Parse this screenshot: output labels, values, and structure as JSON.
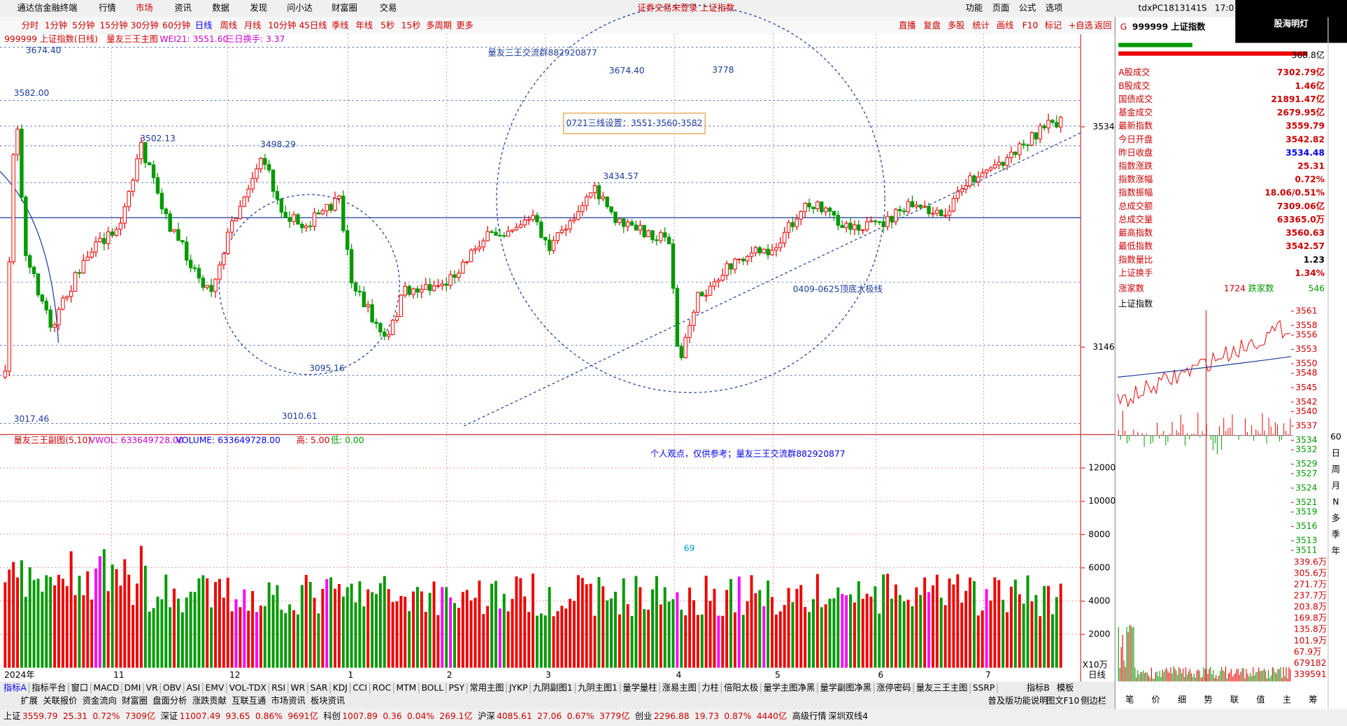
{
  "menu": {
    "app": "通达信金融终端",
    "items": [
      "行情",
      "市场",
      "资讯",
      "数据",
      "发现",
      "问小达",
      "财富圈",
      "交易"
    ],
    "notice": "证券交易未登录 上证指数",
    "right": [
      "功能",
      "页面",
      "公式",
      "选项"
    ],
    "pc": "tdxPC1813141S",
    "time": "17:0"
  },
  "periods": [
    "分时",
    "1分钟",
    "5分钟",
    "15分钟",
    "30分钟",
    "60分钟",
    "日线",
    "周线",
    "月线",
    "10分钟",
    "45日线",
    "季线",
    "年线",
    "5秒",
    "15秒",
    "多周期",
    "更多"
  ],
  "tools": [
    "直播",
    "复盘",
    "多股",
    "统计",
    "画线",
    "F10",
    "标记",
    "+自选",
    "返回"
  ],
  "chart_header": {
    "name": "999999 上证指数(日线)",
    "indicator": "量友三王主图",
    "wei": "WEI21: 3551.60",
    "turnover": "三日换手: 3.37"
  },
  "price_labels": [
    "3674.40",
    "3582.00",
    "3502.13",
    "3498.29",
    "3434.57",
    "3095.16",
    "3010.61",
    "3017.46"
  ],
  "annotations": {
    "group": "量友三王交流群882920877",
    "high": "3674.40",
    "target": "3778",
    "lines": "0721三线设置：3551-3560-3582",
    "taiji": "0409-0625顶底太极线"
  },
  "price_axis": [
    3534,
    3146
  ],
  "sub_header": [
    "量友三王副图(5,10)",
    "VWOL: 633649728.00",
    "VOLUME: 633649728.00",
    "高: 5.00",
    "低: 0.00"
  ],
  "sub_note": "个人观点，仅供参考；量友三王交流群882920877",
  "volume_axis": [
    12000,
    10000,
    8000,
    6000,
    4000,
    2000
  ],
  "volume_unit": "X10万",
  "volume_mark": "69",
  "months": [
    "2024年",
    "11",
    "12",
    "1",
    "2",
    "3",
    "4",
    "5",
    "6",
    "7"
  ],
  "period_tag": "日线",
  "indicator_tabs": [
    "指标A",
    "指标平台",
    "窗口",
    "MACD",
    "DMI",
    "VR",
    "OBV",
    "ASI",
    "EMV",
    "VOL-TDX",
    "RSI",
    "WR",
    "SAR",
    "KDJ",
    "CCI",
    "ROC",
    "MTM",
    "BOLL",
    "PSY",
    "常用主图",
    "JYKP",
    "九阴副图1",
    "九阴主图1",
    "量学量柱",
    "涨易主图",
    "力柱",
    "倍阳太极",
    "量学主图净黑",
    "量学副图净黑",
    "涨停密码",
    "量友三王主图",
    "SSRP"
  ],
  "indicator_right": [
    "指标B",
    "模板"
  ],
  "function_tabs": [
    "扩展",
    "关联报价",
    "资金流向",
    "财富圈",
    "盘面分析",
    "涨跌贡献",
    "互联互通",
    "市场资讯",
    "板块资讯"
  ],
  "function_right": [
    "普及版功能说明",
    "图文F10",
    "侧边栏"
  ],
  "status": [
    "上证",
    "3559.79",
    "25.31",
    "0.72%",
    "7309亿",
    "深证",
    "11007.49",
    "93.65",
    "0.86%",
    "9691亿",
    "科创",
    "1007.89",
    "0.36",
    "0.04%",
    "269.1亿",
    "沪深",
    "4085.61",
    "27.06",
    "0.67%",
    "3779亿",
    "创业",
    "2296.88",
    "19.73",
    "0.87%",
    "4440亿",
    "高级行情",
    "深圳双线4"
  ],
  "quote": {
    "badge": "G",
    "code": "999999 上证指数",
    "watermark": "股海明灯",
    "top_value": "368.8亿",
    "rows": [
      [
        "A股成交",
        "7302.79亿"
      ],
      [
        "B股成交",
        "1.46亿"
      ],
      [
        "国债成交",
        "21891.47亿"
      ],
      [
        "基金成交",
        "2679.95亿"
      ],
      [
        "最新指数",
        "3559.79"
      ],
      [
        "今日开盘",
        "3542.82"
      ],
      [
        "昨日收盘",
        "3534.48"
      ],
      [
        "指数涨跌",
        "25.31"
      ],
      [
        "指数涨幅",
        "0.72%"
      ],
      [
        "指数振幅",
        "18.06/0.51%"
      ],
      [
        "总成交额",
        "7309.06亿"
      ],
      [
        "总成交量",
        "63365.0万"
      ],
      [
        "最高指数",
        "3560.63"
      ],
      [
        "最低指数",
        "3542.57"
      ],
      [
        "指数量比",
        "1.23"
      ],
      [
        "上证换手",
        "1.34%"
      ]
    ],
    "rise_label": "涨家数",
    "rise": "1724",
    "fall_label": "跌家数",
    "fall": "546"
  },
  "mini": {
    "title": "上证指数",
    "price_ticks": [
      3561,
      3558,
      3556,
      3553,
      3550,
      3548,
      3545,
      3542,
      3540,
      3537,
      3534,
      3532,
      3529,
      3527,
      3524,
      3521,
      3519,
      3516,
      3513,
      3511
    ],
    "volume_ticks": [
      "339.6万",
      "305.6万",
      "271.7万",
      "237.7万",
      "203.8万",
      "169.8万",
      "135.8万",
      "101.9万",
      "67.9万",
      "679182",
      "339591"
    ]
  },
  "panel_tabs": [
    "笔",
    "价",
    "细",
    "势",
    "联",
    "值",
    "主",
    "筹"
  ],
  "side_tabs": [
    "60",
    "日",
    "周",
    "月",
    "N",
    "多",
    "季",
    "年"
  ]
}
